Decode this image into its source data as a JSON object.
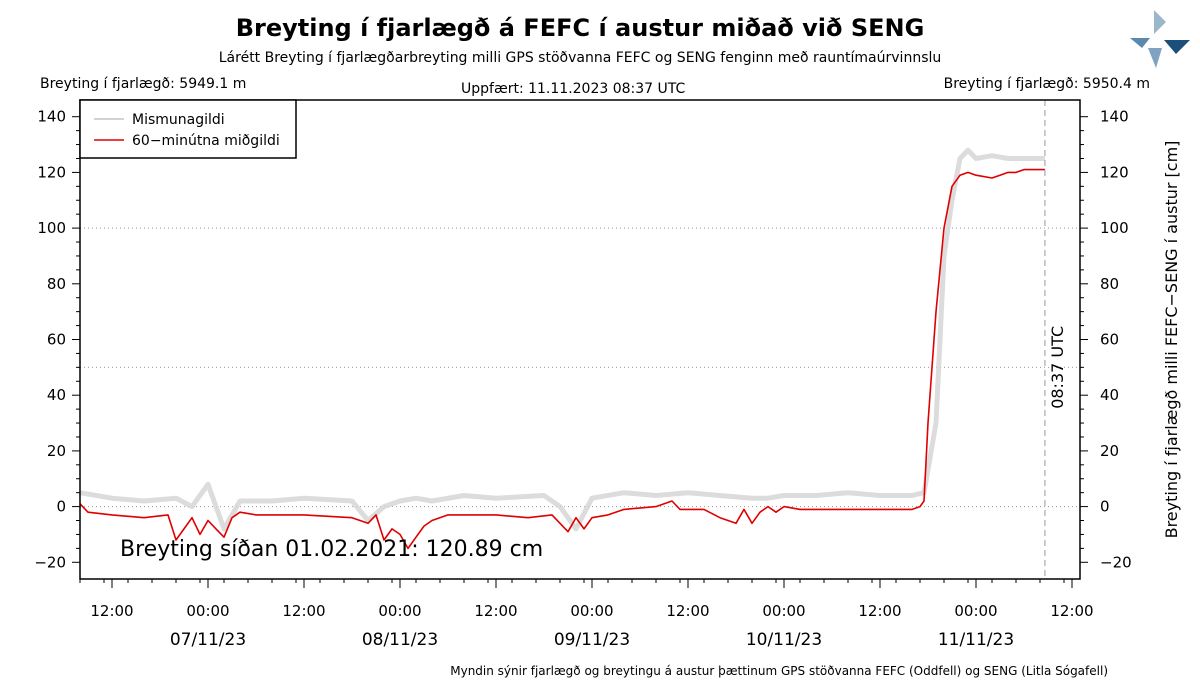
{
  "header": {
    "title": "Breyting í fjarlægð á FEFC í austur miðað við SENG",
    "subtitle": "Lárétt Breyting í fjarlægðarbreyting milli GPS stöðvanna FEFC og SENG fenginn með rauntímaúrvinnslu",
    "left_info": "Breyting í fjarlægð: 5949.1 m",
    "center_info": "Uppfært: 11.11.2023 08:37 UTC",
    "right_info": "Breyting í fjarlægð: 5950.4 m"
  },
  "footer": "Myndin sýnir fjarlægð og breytingu á austur þættinum GPS stöðvanna FEFC (Oddfell) og SENG (Litla Sógafell)",
  "chart_data": {
    "type": "line",
    "title": "Breyting í fjarlægð á FEFC í austur miðað við SENG",
    "xlabel": "",
    "ylabel": "Breyting í fjarlægð milli FEFC−SENG í austur [cm]",
    "ylim": [
      -26,
      146
    ],
    "yticks": [
      -20,
      0,
      20,
      40,
      60,
      80,
      100,
      120,
      140
    ],
    "xlim": [
      "2023-11-06 08:00",
      "2023-11-11 13:00"
    ],
    "xtick_labels": [
      "12:00",
      "00:00",
      "12:00",
      "00:00",
      "12:00",
      "00:00",
      "12:00",
      "00:00",
      "12:00",
      "00:00",
      "12:00"
    ],
    "xtick_times": [
      "2023-11-06 12:00",
      "2023-11-07 00:00",
      "2023-11-07 12:00",
      "2023-11-08 00:00",
      "2023-11-08 12:00",
      "2023-11-09 00:00",
      "2023-11-09 12:00",
      "2023-11-10 00:00",
      "2023-11-10 12:00",
      "2023-11-11 00:00",
      "2023-11-11 12:00"
    ],
    "date_labels": [
      "07/11/23",
      "08/11/23",
      "09/11/23",
      "10/11/23",
      "11/11/23"
    ],
    "date_label_times": [
      "2023-11-07 00:00",
      "2023-11-08 00:00",
      "2023-11-09 00:00",
      "2023-11-10 00:00",
      "2023-11-11 00:00"
    ],
    "grid": "dotted horizontal at 0, 50, 100",
    "legend": "top-left",
    "annotation": "Breyting síðan 01.02.2021: 120.89 cm",
    "vline": {
      "time": "2023-11-11 08:37",
      "label": "08:37 UTC"
    },
    "series": [
      {
        "name": "Mismunagildi",
        "color": "#d3d3d3",
        "x": [
          "2023-11-06 08:00",
          "2023-11-06 12:00",
          "2023-11-06 16:00",
          "2023-11-06 20:00",
          "2023-11-06 22:00",
          "2023-11-07 00:00",
          "2023-11-07 02:00",
          "2023-11-07 04:00",
          "2023-11-07 08:00",
          "2023-11-07 12:00",
          "2023-11-07 18:00",
          "2023-11-07 20:00",
          "2023-11-07 22:00",
          "2023-11-08 00:00",
          "2023-11-08 02:00",
          "2023-11-08 04:00",
          "2023-11-08 08:00",
          "2023-11-08 12:00",
          "2023-11-08 18:00",
          "2023-11-08 20:00",
          "2023-11-08 22:00",
          "2023-11-09 00:00",
          "2023-11-09 04:00",
          "2023-11-09 08:00",
          "2023-11-09 12:00",
          "2023-11-09 16:00",
          "2023-11-09 20:00",
          "2023-11-09 22:00",
          "2023-11-10 00:00",
          "2023-11-10 04:00",
          "2023-11-10 08:00",
          "2023-11-10 12:00",
          "2023-11-10 16:00",
          "2023-11-10 17:30",
          "2023-11-10 19:00",
          "2023-11-10 20:00",
          "2023-11-10 21:00",
          "2023-11-10 22:00",
          "2023-11-10 23:00",
          "2023-11-11 00:00",
          "2023-11-11 02:00",
          "2023-11-11 04:00",
          "2023-11-11 06:00",
          "2023-11-11 08:37"
        ],
        "values": [
          5,
          3,
          2,
          3,
          0,
          8,
          -8,
          2,
          2,
          3,
          2,
          -5,
          0,
          2,
          3,
          2,
          4,
          3,
          4,
          0,
          -8,
          3,
          5,
          4,
          5,
          4,
          3,
          3,
          4,
          4,
          5,
          4,
          4,
          5,
          30,
          90,
          110,
          125,
          128,
          125,
          126,
          125,
          125,
          125
        ]
      },
      {
        "name": "60−minútna miðgildi",
        "color": "#e00000",
        "x": [
          "2023-11-06 08:00",
          "2023-11-06 09:00",
          "2023-11-06 12:00",
          "2023-11-06 16:00",
          "2023-11-06 19:00",
          "2023-11-06 20:00",
          "2023-11-06 21:00",
          "2023-11-06 22:00",
          "2023-11-06 23:00",
          "2023-11-07 00:00",
          "2023-11-07 01:00",
          "2023-11-07 02:00",
          "2023-11-07 03:00",
          "2023-11-07 04:00",
          "2023-11-07 06:00",
          "2023-11-07 12:00",
          "2023-11-07 18:00",
          "2023-11-07 20:00",
          "2023-11-07 21:00",
          "2023-11-07 22:00",
          "2023-11-07 23:00",
          "2023-11-08 00:00",
          "2023-11-08 01:00",
          "2023-11-08 02:00",
          "2023-11-08 03:00",
          "2023-11-08 04:00",
          "2023-11-08 06:00",
          "2023-11-08 08:00",
          "2023-11-08 12:00",
          "2023-11-08 16:00",
          "2023-11-08 19:00",
          "2023-11-08 20:00",
          "2023-11-08 21:00",
          "2023-11-08 22:00",
          "2023-11-08 23:00",
          "2023-11-09 00:00",
          "2023-11-09 02:00",
          "2023-11-09 04:00",
          "2023-11-09 08:00",
          "2023-11-09 10:00",
          "2023-11-09 11:00",
          "2023-11-09 12:00",
          "2023-11-09 14:00",
          "2023-11-09 16:00",
          "2023-11-09 18:00",
          "2023-11-09 19:00",
          "2023-11-09 20:00",
          "2023-11-09 21:00",
          "2023-11-09 22:00",
          "2023-11-09 23:00",
          "2023-11-10 00:00",
          "2023-11-10 02:00",
          "2023-11-10 04:00",
          "2023-11-10 06:00",
          "2023-11-10 08:00",
          "2023-11-10 12:00",
          "2023-11-10 14:00",
          "2023-11-10 16:00",
          "2023-11-10 17:00",
          "2023-11-10 17:30",
          "2023-11-10 18:00",
          "2023-11-10 19:00",
          "2023-11-10 20:00",
          "2023-11-10 21:00",
          "2023-11-10 22:00",
          "2023-11-10 23:00",
          "2023-11-11 00:00",
          "2023-11-11 02:00",
          "2023-11-11 03:00",
          "2023-11-11 04:00",
          "2023-11-11 05:00",
          "2023-11-11 06:00",
          "2023-11-11 07:00",
          "2023-11-11 08:37"
        ],
        "values": [
          1,
          -2,
          -3,
          -4,
          -3,
          -12,
          -8,
          -4,
          -10,
          -5,
          -8,
          -11,
          -4,
          -2,
          -3,
          -3,
          -4,
          -6,
          -3,
          -12,
          -8,
          -10,
          -15,
          -11,
          -7,
          -5,
          -3,
          -3,
          -3,
          -4,
          -3,
          -6,
          -9,
          -4,
          -8,
          -4,
          -3,
          -1,
          0,
          2,
          -1,
          -1,
          -1,
          -4,
          -6,
          -1,
          -6,
          -2,
          0,
          -2,
          0,
          -1,
          -1,
          -1,
          -1,
          -1,
          -1,
          -1,
          0,
          2,
          30,
          70,
          100,
          115,
          119,
          120,
          119,
          118,
          119,
          120,
          120,
          121,
          121,
          121
        ]
      }
    ]
  }
}
